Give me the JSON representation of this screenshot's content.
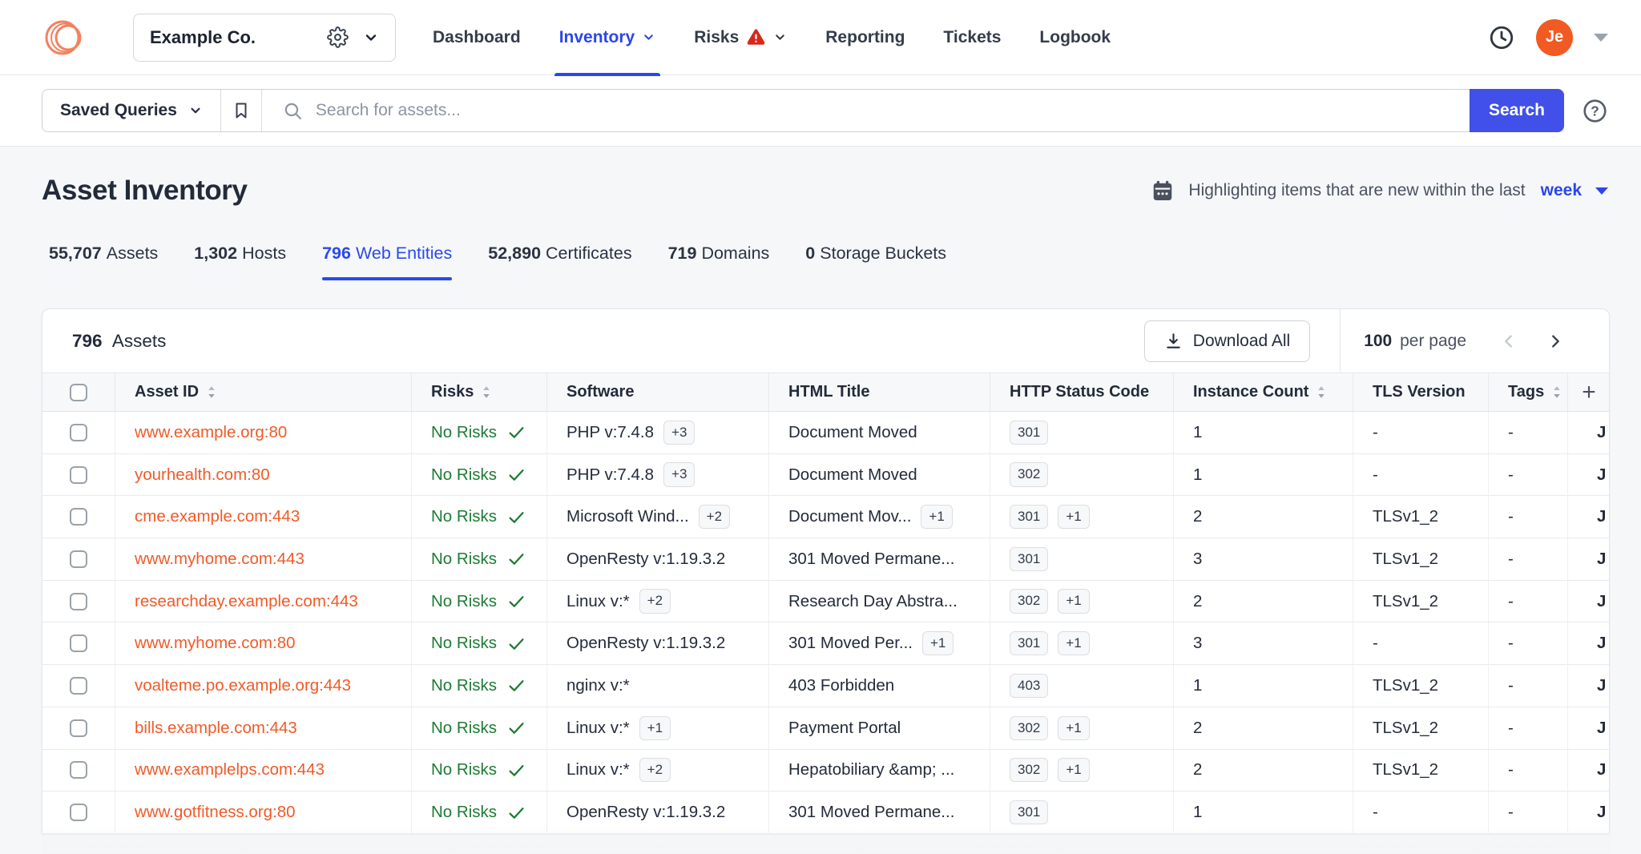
{
  "colors": {
    "accent_blue": "#2B46EF",
    "search_button_blue": "#4050E8",
    "asset_link_orange": "#F05A28",
    "brand_logo_orange": "#F4815E",
    "avatar_orange": "#F15A22",
    "no_risk_green": "#1D7C34",
    "warning_red": "#D7281C"
  },
  "nav": {
    "org_name": "Example Co.",
    "items": [
      {
        "label": "Dashboard",
        "active": false,
        "caret": false,
        "warning": false
      },
      {
        "label": "Inventory",
        "active": true,
        "caret": true,
        "warning": false
      },
      {
        "label": "Risks",
        "active": false,
        "caret": true,
        "warning": true
      },
      {
        "label": "Reporting",
        "active": false,
        "caret": false,
        "warning": false
      },
      {
        "label": "Tickets",
        "active": false,
        "caret": false,
        "warning": false
      },
      {
        "label": "Logbook",
        "active": false,
        "caret": false,
        "warning": false
      }
    ],
    "avatar_initials": "Je",
    "icons": [
      "brand-logo-icon",
      "gear-icon",
      "chevron-down-icon",
      "warning-triangle-icon",
      "history-clock-icon",
      "avatar-caret-icon"
    ]
  },
  "search": {
    "saved_queries_label": "Saved Queries",
    "placeholder": "Search for assets...",
    "button_label": "Search",
    "icons": [
      "chevron-down-icon",
      "bookmark-icon",
      "search-icon",
      "help-icon"
    ]
  },
  "page": {
    "title": "Asset Inventory",
    "highlight_prefix": "Highlighting items that are new within the last",
    "highlight_period": "week",
    "icons": [
      "calendar-icon",
      "caret-down-icon"
    ]
  },
  "tabs": [
    {
      "count": "55,707",
      "label": "Assets",
      "active": false
    },
    {
      "count": "1,302",
      "label": "Hosts",
      "active": false
    },
    {
      "count": "796",
      "label": "Web Entities",
      "active": true
    },
    {
      "count": "52,890",
      "label": "Certificates",
      "active": false
    },
    {
      "count": "719",
      "label": "Domains",
      "active": false
    },
    {
      "count": "0",
      "label": "Storage Buckets",
      "active": false
    }
  ],
  "table": {
    "count": "796",
    "count_label": "Assets",
    "download_label": "Download All",
    "per_page_count": "100",
    "per_page_label": "per page",
    "columns": [
      {
        "type": "checkbox",
        "label": ""
      },
      {
        "type": "text",
        "label": "Asset ID",
        "sortable": true
      },
      {
        "type": "text",
        "label": "Risks",
        "sortable": true
      },
      {
        "type": "text",
        "label": "Software",
        "sortable": false
      },
      {
        "type": "text",
        "label": "HTML Title",
        "sortable": false
      },
      {
        "type": "text",
        "label": "HTTP Status Code",
        "sortable": false
      },
      {
        "type": "text",
        "label": "Instance Count",
        "sortable": true
      },
      {
        "type": "text",
        "label": "TLS Version",
        "sortable": false
      },
      {
        "type": "text",
        "label": "Tags",
        "sortable": true
      },
      {
        "type": "add",
        "label": "+"
      }
    ],
    "rows": [
      {
        "asset_id": "www.example.org:80",
        "risks": "No Risks",
        "software": "PHP v:7.4.8",
        "software_more": "+3",
        "html_title": "Document Moved",
        "title_more": "",
        "status": "301",
        "status_more": "",
        "instances": "1",
        "tls": "-",
        "tags": "-",
        "clipped": "J"
      },
      {
        "asset_id": "yourhealth.com:80",
        "risks": "No Risks",
        "software": "PHP v:7.4.8",
        "software_more": "+3",
        "html_title": "Document Moved",
        "title_more": "",
        "status": "302",
        "status_more": "",
        "instances": "1",
        "tls": "-",
        "tags": "-",
        "clipped": "J"
      },
      {
        "asset_id": "cme.example.com:443",
        "risks": "No Risks",
        "software": "Microsoft Wind...",
        "software_more": "+2",
        "html_title": "Document Mov...",
        "title_more": "+1",
        "status": "301",
        "status_more": "+1",
        "instances": "2",
        "tls": "TLSv1_2",
        "tags": "-",
        "clipped": "J"
      },
      {
        "asset_id": "www.myhome.com:443",
        "risks": "No Risks",
        "software": "OpenResty v:1.19.3.2",
        "software_more": "",
        "html_title": "301 Moved Permane...",
        "title_more": "",
        "status": "301",
        "status_more": "",
        "instances": "3",
        "tls": "TLSv1_2",
        "tags": "-",
        "clipped": "J"
      },
      {
        "asset_id": "researchday.example.com:443",
        "risks": "No Risks",
        "software": "Linux v:*",
        "software_more": "+2",
        "html_title": "Research Day Abstra...",
        "title_more": "",
        "status": "302",
        "status_more": "+1",
        "instances": "2",
        "tls": "TLSv1_2",
        "tags": "-",
        "clipped": "J"
      },
      {
        "asset_id": "www.myhome.com:80",
        "risks": "No Risks",
        "software": "OpenResty v:1.19.3.2",
        "software_more": "",
        "html_title": "301 Moved Per...",
        "title_more": "+1",
        "status": "301",
        "status_more": "+1",
        "instances": "3",
        "tls": "-",
        "tags": "-",
        "clipped": "J"
      },
      {
        "asset_id": "voalteme.po.example.org:443",
        "risks": "No Risks",
        "software": "nginx v:*",
        "software_more": "",
        "html_title": "403 Forbidden",
        "title_more": "",
        "status": "403",
        "status_more": "",
        "instances": "1",
        "tls": "TLSv1_2",
        "tags": "-",
        "clipped": "J"
      },
      {
        "asset_id": "bills.example.com:443",
        "risks": "No Risks",
        "software": "Linux v:*",
        "software_more": "+1",
        "html_title": "Payment Portal",
        "title_more": "",
        "status": "302",
        "status_more": "+1",
        "instances": "2",
        "tls": "TLSv1_2",
        "tags": "-",
        "clipped": "J"
      },
      {
        "asset_id": "www.examplelps.com:443",
        "risks": "No Risks",
        "software": "Linux v:*",
        "software_more": "+2",
        "html_title": "Hepatobiliary &amp; ...",
        "title_more": "",
        "status": "302",
        "status_more": "+1",
        "instances": "2",
        "tls": "TLSv1_2",
        "tags": "-",
        "clipped": "J"
      },
      {
        "asset_id": "www.gotfitness.org:80",
        "risks": "No Risks",
        "software": "OpenResty v:1.19.3.2",
        "software_more": "",
        "html_title": "301 Moved Permane...",
        "title_more": "",
        "status": "301",
        "status_more": "",
        "instances": "1",
        "tls": "-",
        "tags": "-",
        "clipped": "J"
      }
    ]
  }
}
